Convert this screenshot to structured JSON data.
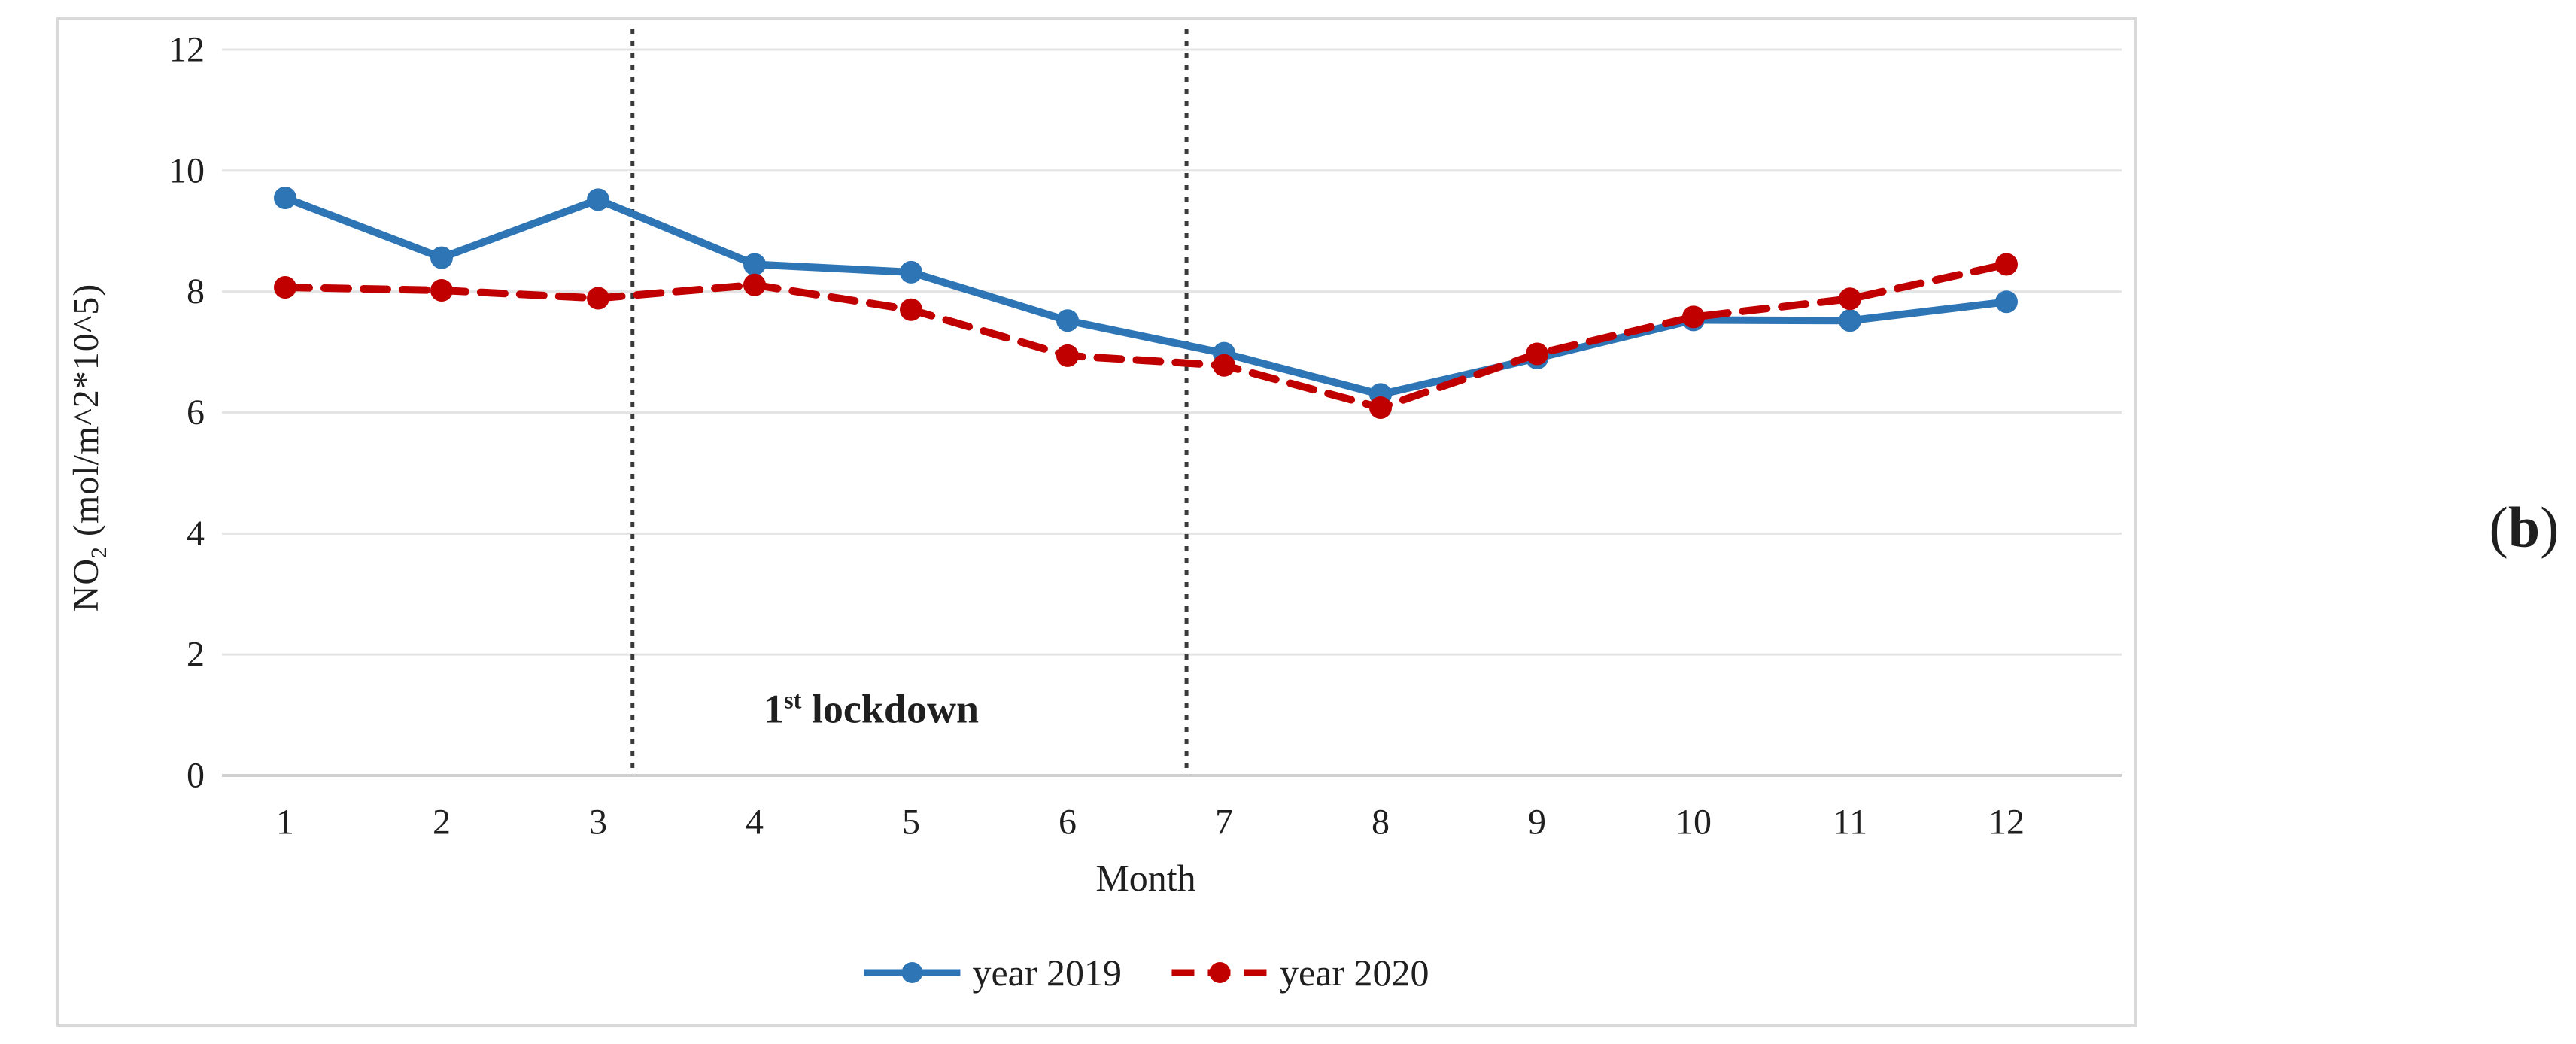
{
  "panel": {
    "open": "(",
    "letter": "b",
    "close": ")"
  },
  "axes": {
    "y_title_prefix": "NO",
    "y_title_sub": "2",
    "y_title_suffix": " (mol/m^2*10^5)",
    "x_title": "Month"
  },
  "annotation": {
    "lockdown_num": "1",
    "lockdown_sup": "st",
    "lockdown_rest": " lockdown"
  },
  "legend": {
    "items": [
      {
        "label": "year 2019"
      },
      {
        "label": "year 2020"
      }
    ]
  },
  "colors": {
    "series_2019": "#2e75b6",
    "series_2020": "#c00000",
    "gridline": "#e4e4e4",
    "axis_line": "#cfcfcf",
    "dotted_rule": "#3a3a3a",
    "text": "#1f1f1f",
    "figure_border": "#d9d9d9"
  },
  "chart_data": {
    "type": "line",
    "x": [
      1,
      2,
      3,
      4,
      5,
      6,
      7,
      8,
      9,
      10,
      11,
      12
    ],
    "xlabel": "Month",
    "ylabel": "NO2 (mol/m^2*10^5)",
    "ylim": [
      0,
      12
    ],
    "yticks": [
      0,
      2,
      4,
      6,
      8,
      10,
      12
    ],
    "grid": true,
    "legend_position": "bottom",
    "series": [
      {
        "name": "year 2019",
        "color": "#2e75b6",
        "style": "solid",
        "marker": "circle",
        "values": [
          9.55,
          8.56,
          9.52,
          8.45,
          8.32,
          7.52,
          6.98,
          6.3,
          6.9,
          7.53,
          7.52,
          7.83
        ]
      },
      {
        "name": "year 2020",
        "color": "#c00000",
        "style": "dashed",
        "marker": "circle",
        "values": [
          8.07,
          8.02,
          7.89,
          8.11,
          7.7,
          6.94,
          6.78,
          6.08,
          6.97,
          7.58,
          7.88,
          8.45
        ]
      }
    ],
    "annotations": {
      "vertical_dotted_lines_x": [
        3.22,
        6.76
      ],
      "label": "1st lockdown",
      "label_between_lines": true
    }
  }
}
